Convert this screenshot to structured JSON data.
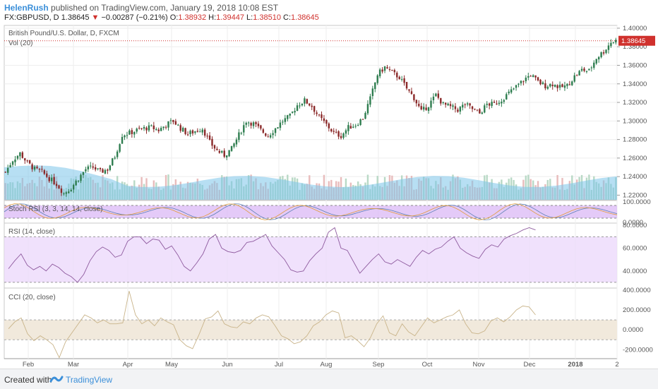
{
  "header": {
    "author": "HelenRush",
    "published": "published on TradingView.com, January 19, 2018 10:08 EST",
    "symbol": "FX:GBPUSD, D",
    "last": "1.38645",
    "change": "−0.00287 (−0.21%)",
    "o_label": "O:",
    "o_val": "1.38932",
    "h_label": "H:",
    "h_val": "1.39447",
    "l_label": "L:",
    "l_val": "1.38510",
    "c_label": "C:",
    "c_val": "1.38645"
  },
  "footer": {
    "created": "Created with",
    "brand": "TradingView"
  },
  "chart_data": {
    "type": "candlestick",
    "main_label": "British Pound/U.S. Dollar, D, FXCM",
    "vol_label": "Vol (20)",
    "price_ticks": [
      "1.40000",
      "1.38000",
      "1.36000",
      "1.34000",
      "1.32000",
      "1.30000",
      "1.28000",
      "1.26000",
      "1.24000",
      "1.22000"
    ],
    "price_ylim": [
      1.215,
      1.403
    ],
    "last_price": "1.38645",
    "x_ticks": [
      "Feb",
      "Mar",
      "Apr",
      "May",
      "Jun",
      "Jul",
      "Aug",
      "Sep",
      "Oct",
      "Nov",
      "Dec",
      "2018",
      "2"
    ],
    "close_path": [
      [
        0,
        1.245
      ],
      [
        3,
        1.258
      ],
      [
        6,
        1.265
      ],
      [
        9,
        1.255
      ],
      [
        12,
        1.248
      ],
      [
        15,
        1.245
      ],
      [
        18,
        1.238
      ],
      [
        21,
        1.232
      ],
      [
        24,
        1.222
      ],
      [
        27,
        1.228
      ],
      [
        30,
        1.238
      ],
      [
        33,
        1.248
      ],
      [
        36,
        1.25
      ],
      [
        39,
        1.245
      ],
      [
        42,
        1.248
      ],
      [
        45,
        1.262
      ],
      [
        48,
        1.285
      ],
      [
        51,
        1.287
      ],
      [
        54,
        1.29
      ],
      [
        57,
        1.292
      ],
      [
        60,
        1.293
      ],
      [
        63,
        1.29
      ],
      [
        66,
        1.296
      ],
      [
        69,
        1.3
      ],
      [
        72,
        1.292
      ],
      [
        75,
        1.286
      ],
      [
        78,
        1.289
      ],
      [
        81,
        1.292
      ],
      [
        84,
        1.277
      ],
      [
        87,
        1.268
      ],
      [
        90,
        1.263
      ],
      [
        93,
        1.27
      ],
      [
        96,
        1.285
      ],
      [
        99,
        1.3
      ],
      [
        102,
        1.297
      ],
      [
        105,
        1.29
      ],
      [
        108,
        1.284
      ],
      [
        111,
        1.292
      ],
      [
        114,
        1.3
      ],
      [
        117,
        1.305
      ],
      [
        120,
        1.317
      ],
      [
        123,
        1.322
      ],
      [
        126,
        1.316
      ],
      [
        129,
        1.304
      ],
      [
        132,
        1.296
      ],
      [
        135,
        1.287
      ],
      [
        138,
        1.284
      ],
      [
        141,
        1.293
      ],
      [
        144,
        1.296
      ],
      [
        147,
        1.303
      ],
      [
        150,
        1.324
      ],
      [
        153,
        1.35
      ],
      [
        156,
        1.358
      ],
      [
        159,
        1.352
      ],
      [
        162,
        1.347
      ],
      [
        165,
        1.335
      ],
      [
        168,
        1.325
      ],
      [
        171,
        1.31
      ],
      [
        174,
        1.317
      ],
      [
        177,
        1.328
      ],
      [
        180,
        1.318
      ],
      [
        183,
        1.315
      ],
      [
        186,
        1.312
      ],
      [
        189,
        1.318
      ],
      [
        192,
        1.313
      ],
      [
        195,
        1.308
      ],
      [
        198,
        1.318
      ],
      [
        201,
        1.318
      ],
      [
        204,
        1.323
      ],
      [
        207,
        1.33
      ],
      [
        210,
        1.337
      ],
      [
        213,
        1.344
      ],
      [
        216,
        1.35
      ],
      [
        219,
        1.342
      ],
      [
        222,
        1.338
      ],
      [
        225,
        1.34
      ],
      [
        228,
        1.336
      ],
      [
        231,
        1.338
      ],
      [
        234,
        1.348
      ],
      [
        237,
        1.355
      ],
      [
        240,
        1.354
      ],
      [
        243,
        1.368
      ],
      [
        246,
        1.375
      ],
      [
        249,
        1.385
      ],
      [
        251,
        1.3865
      ]
    ],
    "stoch_label": "Stoch RSI (3, 3, 14, 14, close)",
    "stoch_ticks": [
      "100.0000",
      "0.0000"
    ],
    "stoch_ylim": [
      0,
      100
    ],
    "rsi_label": "RSI (14, close)",
    "rsi_ticks": [
      "80.0000",
      "60.0000",
      "40.0000"
    ],
    "rsi_ylim": [
      25,
      82
    ],
    "rsi_values": [
      42,
      49,
      55,
      45,
      41,
      44,
      40,
      46,
      43,
      38,
      35,
      30,
      37,
      49,
      57,
      61,
      58,
      52,
      54,
      66,
      70,
      70,
      64,
      68,
      67,
      59,
      62,
      54,
      44,
      40,
      47,
      55,
      68,
      72,
      60,
      57,
      56,
      58,
      65,
      66,
      69,
      72,
      62,
      56,
      50,
      41,
      39,
      40,
      49,
      55,
      60,
      74,
      78,
      60,
      58,
      48,
      38,
      44,
      50,
      55,
      48,
      46,
      50,
      47,
      44,
      52,
      58,
      55,
      59,
      61,
      66,
      70,
      60,
      56,
      53,
      51,
      59,
      63,
      61,
      68,
      71,
      73,
      76,
      78,
      76
    ],
    "cci_label": "CCI (20, close)",
    "cci_ticks": [
      "400.0000",
      "200.0000",
      "0.0000",
      "-200.0000"
    ],
    "cci_ylim": [
      -290,
      420
    ],
    "cci_values": [
      10,
      80,
      120,
      -40,
      -110,
      -60,
      -100,
      -150,
      -280,
      -120,
      -30,
      60,
      150,
      120,
      70,
      100,
      60,
      60,
      70,
      390,
      150,
      60,
      100,
      40,
      120,
      80,
      50,
      -100,
      -160,
      -190,
      -50,
      110,
      130,
      190,
      60,
      30,
      20,
      80,
      60,
      120,
      150,
      130,
      40,
      -60,
      -90,
      -140,
      -120,
      -60,
      40,
      80,
      150,
      190,
      170,
      -80,
      -60,
      -110,
      -170,
      -80,
      60,
      140,
      -30,
      -60,
      60,
      -20,
      -60,
      30,
      120,
      70,
      100,
      130,
      150,
      200,
      60,
      -30,
      -40,
      -10,
      90,
      120,
      80,
      130,
      200,
      240,
      230,
      150
    ]
  }
}
